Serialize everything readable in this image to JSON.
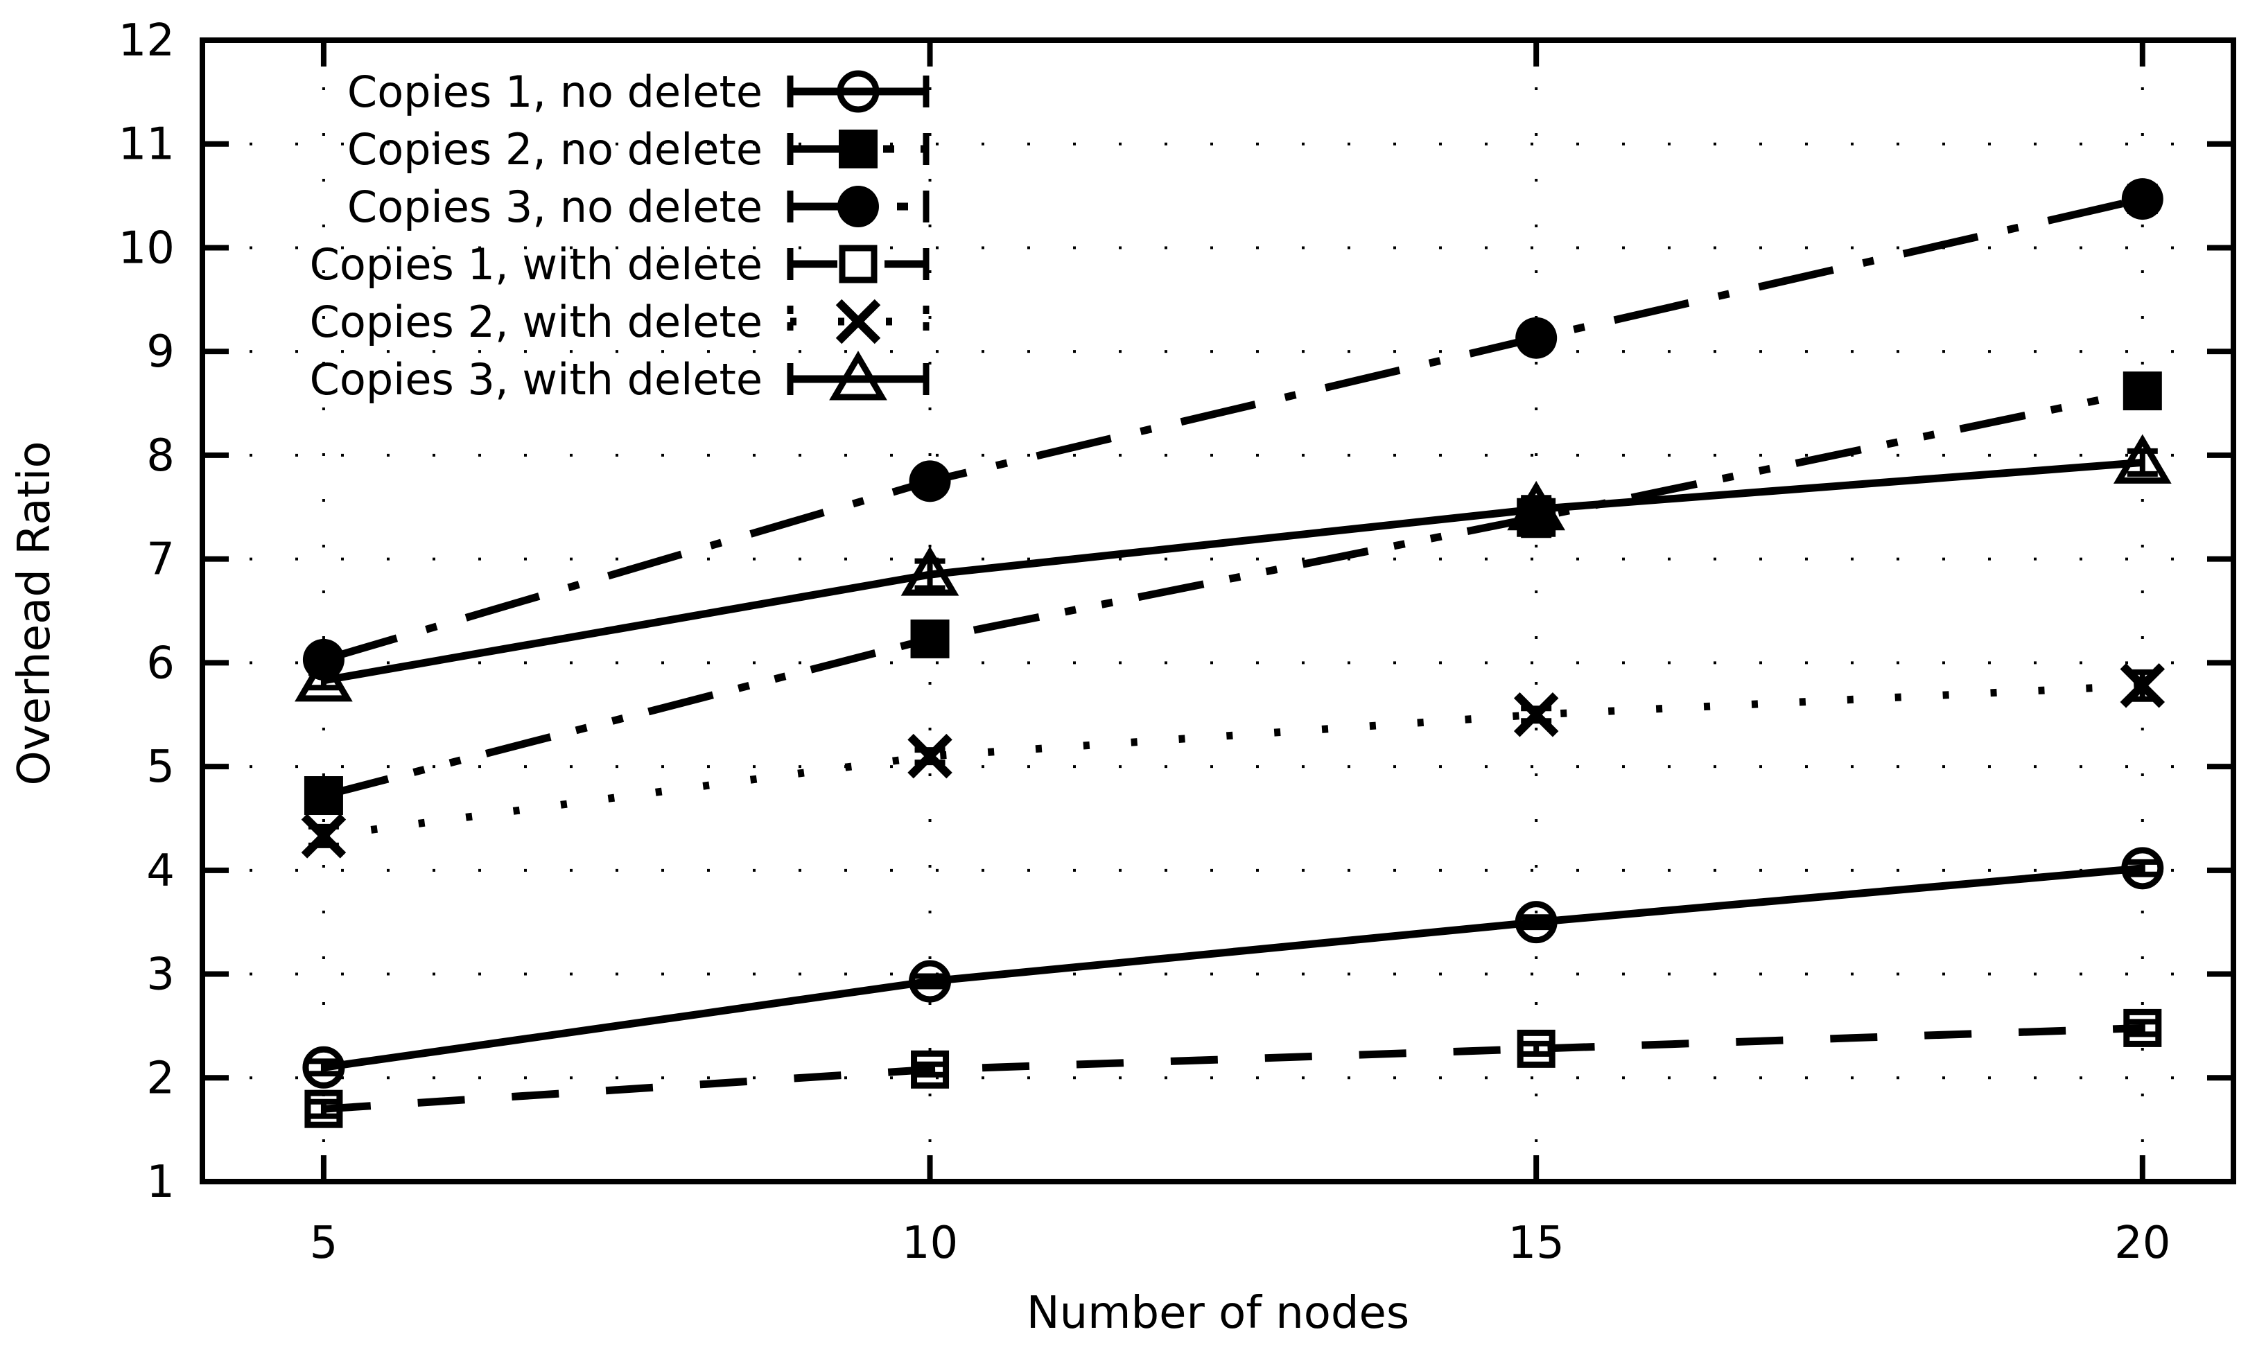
{
  "chart_data": {
    "type": "line",
    "title": "",
    "xlabel": "Number of nodes",
    "ylabel": "Overhead Ratio",
    "x": [
      5,
      10,
      15,
      20
    ],
    "xticks": [
      5,
      10,
      15,
      20
    ],
    "yticks": [
      1,
      2,
      3,
      4,
      5,
      6,
      7,
      8,
      9,
      10,
      11,
      12
    ],
    "xlim": [
      4,
      20.75
    ],
    "ylim": [
      1,
      12
    ],
    "grid": true,
    "grid_style": "dotted",
    "legend_position": "top-left-inside",
    "legend_sample": "errorbar-line-with-marker",
    "colors": {
      "foreground": "#000000",
      "background": "#ffffff"
    },
    "series": [
      {
        "name": "Copies 1, no delete",
        "marker": "open-circle",
        "line": "solid",
        "values": [
          2.1,
          2.93,
          3.5,
          4.02
        ],
        "yerr": [
          0.06,
          0.05,
          0.05,
          0.06
        ]
      },
      {
        "name": "Copies 2, no delete",
        "marker": "filled-square",
        "line": "dash-dot-dot",
        "values": [
          4.72,
          6.23,
          7.4,
          8.62
        ],
        "yerr": [
          0.07,
          0.06,
          0.17,
          0.09
        ]
      },
      {
        "name": "Copies 3, no delete",
        "marker": "filled-circle",
        "line": "dash-dot",
        "values": [
          6.03,
          7.75,
          9.13,
          10.47
        ],
        "yerr": [
          0.08,
          0.06,
          0.07,
          0.12
        ]
      },
      {
        "name": "Copies 1, with delete",
        "marker": "open-square",
        "line": "dashed",
        "values": [
          1.7,
          2.08,
          2.28,
          2.48
        ],
        "yerr": [
          0.07,
          0.05,
          0.05,
          0.06
        ]
      },
      {
        "name": "Copies 2, with delete",
        "marker": "x-cross",
        "line": "dotted",
        "values": [
          4.33,
          5.1,
          5.5,
          5.78
        ],
        "yerr": [
          0.09,
          0.06,
          0.06,
          0.13
        ]
      },
      {
        "name": "Copies 3, with delete",
        "marker": "open-triangle",
        "line": "solid",
        "values": [
          5.83,
          6.85,
          7.48,
          7.93
        ],
        "yerr": [
          0.07,
          0.13,
          0.11,
          0.11
        ]
      }
    ]
  }
}
